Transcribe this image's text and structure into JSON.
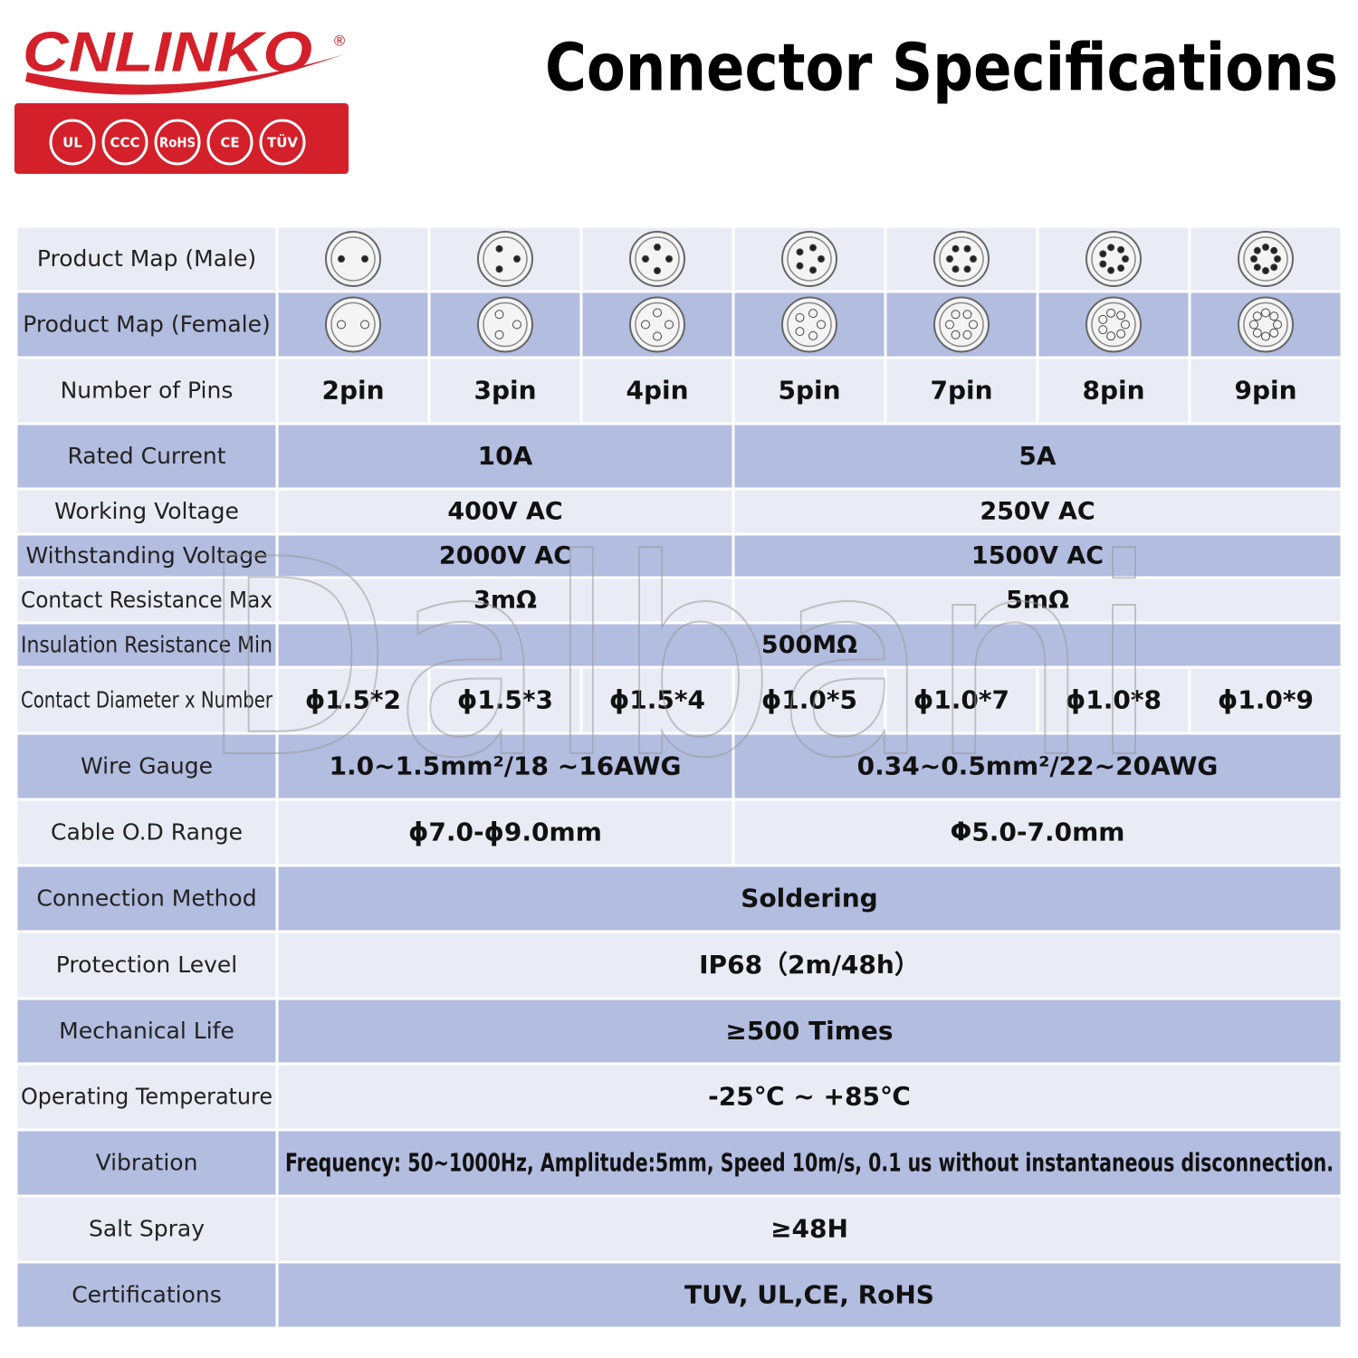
{
  "header": {
    "logo": "CNLINKO",
    "logo_mark": "®",
    "certs": [
      "UL",
      "CCC",
      "RoHS",
      "CE",
      "TÜV"
    ],
    "title": "Connector Specifications"
  },
  "watermark": "Dalbani",
  "table": {
    "rows": [
      {
        "label": "Product Map (Male)",
        "cells": []
      },
      {
        "label": "Product Map (Female)",
        "cells": []
      },
      {
        "label": "Number of Pins",
        "cells": [
          "2pin",
          "3pin",
          "4pin",
          "5pin",
          "7pin",
          "8pin",
          "9pin"
        ]
      },
      {
        "label": "Rated Current",
        "cells": [
          "10A",
          "5A"
        ]
      },
      {
        "label": "Working Voltage",
        "cells": [
          "400V  AC",
          "250V  AC"
        ]
      },
      {
        "label": "Withstanding Voltage",
        "cells": [
          "2000V  AC",
          "1500V  AC"
        ]
      },
      {
        "label": "Contact Resistance Max",
        "cells": [
          "3mΩ",
          "5mΩ"
        ]
      },
      {
        "label": "Insulation Resistance Min",
        "cells": [
          "500MΩ"
        ]
      },
      {
        "label": "Contact Diameter x Number",
        "cells": [
          "ϕ1.5*2",
          "ϕ1.5*3",
          "ϕ1.5*4",
          "ϕ1.0*5",
          "ϕ1.0*7",
          "ϕ1.0*8",
          "ϕ1.0*9"
        ]
      },
      {
        "label": "Wire Gauge",
        "cells": [
          "1.0~1.5mm²/18 ~16AWG",
          "0.34~0.5mm²/22~20AWG"
        ]
      },
      {
        "label": "Cable O.D Range",
        "cells": [
          "ϕ7.0-ϕ9.0mm",
          "Φ5.0-7.0mm"
        ]
      },
      {
        "label": "Connection Method",
        "cells": [
          "Soldering"
        ]
      },
      {
        "label": "Protection Level",
        "cells": [
          "IP68（2m/48h）"
        ]
      },
      {
        "label": "Mechanical Life",
        "cells": [
          "≥500 Times"
        ]
      },
      {
        "label": "Operating Temperature",
        "cells": [
          "-25℃ ~ +85℃"
        ]
      },
      {
        "label": "Vibration",
        "cells": [
          "Frequency: 50~1000Hz, Amplitude:5mm, Speed 10m/s, 0.1 us without instantaneous disconnection."
        ]
      },
      {
        "label": "Salt Spray",
        "cells": [
          "≥48H"
        ]
      },
      {
        "label": "Certifications",
        "cells": [
          "TUV, UL,CE, RoHS"
        ]
      }
    ]
  }
}
